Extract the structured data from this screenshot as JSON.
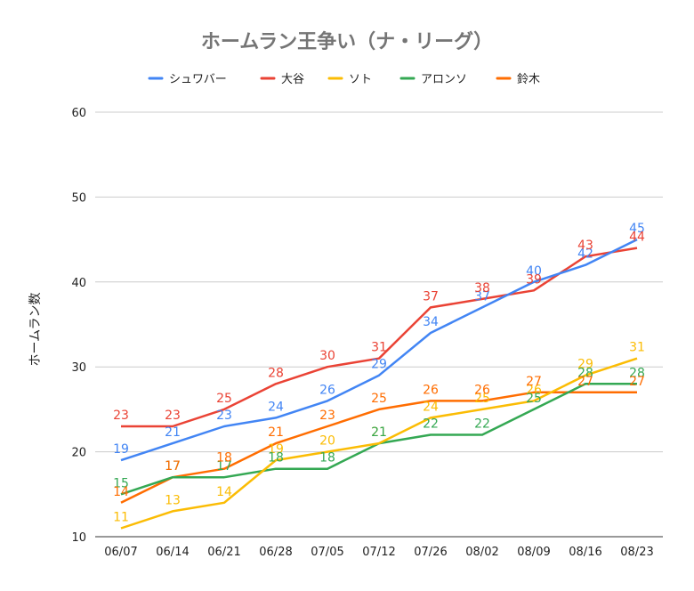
{
  "chart_data": {
    "type": "line",
    "title": "ホームラン王争い（ナ・リーグ）",
    "xlabel": "",
    "ylabel": "ホームラン数",
    "ylim": [
      10,
      60
    ],
    "yticks": [
      10,
      20,
      30,
      40,
      50,
      60
    ],
    "grid": true,
    "legend_position": "top",
    "categories": [
      "06/07",
      "06/14",
      "06/21",
      "06/28",
      "07/05",
      "07/12",
      "07/26",
      "08/02",
      "08/09",
      "08/16",
      "08/23"
    ],
    "series": [
      {
        "name": "シュワバー",
        "color": "#4285F4",
        "values": [
          19,
          21,
          23,
          24,
          26,
          29,
          34,
          37,
          40,
          42,
          45
        ]
      },
      {
        "name": "大谷",
        "color": "#EA4335",
        "values": [
          23,
          23,
          25,
          28,
          30,
          31,
          37,
          38,
          39,
          43,
          44
        ]
      },
      {
        "name": "ソト",
        "color": "#FBBC04",
        "values": [
          11,
          13,
          14,
          19,
          20,
          21,
          24,
          25,
          26,
          29,
          31
        ]
      },
      {
        "name": "アロンソ",
        "color": "#34A853",
        "values": [
          15,
          17,
          17,
          18,
          18,
          21,
          22,
          22,
          25,
          28,
          28
        ]
      },
      {
        "name": "鈴木",
        "color": "#FF6D01",
        "values": [
          14,
          17,
          18,
          21,
          23,
          25,
          26,
          26,
          27,
          27,
          27
        ]
      }
    ]
  }
}
